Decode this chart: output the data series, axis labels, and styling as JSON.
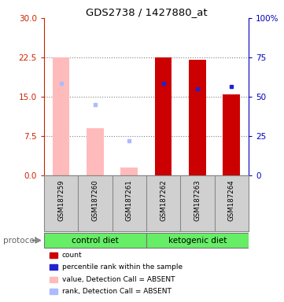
{
  "title": "GDS2738 / 1427880_at",
  "samples": [
    "GSM187259",
    "GSM187260",
    "GSM187261",
    "GSM187262",
    "GSM187263",
    "GSM187264"
  ],
  "group_labels": [
    "control diet",
    "ketogenic diet"
  ],
  "bar_values": [
    22.5,
    9.0,
    1.5,
    22.5,
    22.0,
    15.5
  ],
  "bar_colors": [
    "#ffbbbb",
    "#ffbbbb",
    "#ffbbbb",
    "#cc0000",
    "#cc0000",
    "#cc0000"
  ],
  "rank_values": [
    17.5,
    13.5,
    6.5,
    17.5,
    16.5,
    17.0
  ],
  "rank_colors": [
    "#aabbff",
    "#aabbff",
    "#aabbff",
    "#2222cc",
    "#2222cc",
    "#2222cc"
  ],
  "ylim_left": [
    0,
    30
  ],
  "ylim_right": [
    0,
    100
  ],
  "yticks_left": [
    0,
    7.5,
    15,
    22.5,
    30
  ],
  "yticks_right": [
    0,
    25,
    50,
    75,
    100
  ],
  "left_tick_color": "#cc2200",
  "right_tick_color": "#0000bb",
  "plot_bg": "#ffffff",
  "label_bg": "#d0d0d0",
  "green_color": "#66ee66",
  "legend_items": [
    {
      "label": "count",
      "color": "#cc0000"
    },
    {
      "label": "percentile rank within the sample",
      "color": "#2222cc"
    },
    {
      "label": "value, Detection Call = ABSENT",
      "color": "#ffbbbb"
    },
    {
      "label": "rank, Detection Call = ABSENT",
      "color": "#aabbff"
    }
  ],
  "protocol_label": "protocol"
}
